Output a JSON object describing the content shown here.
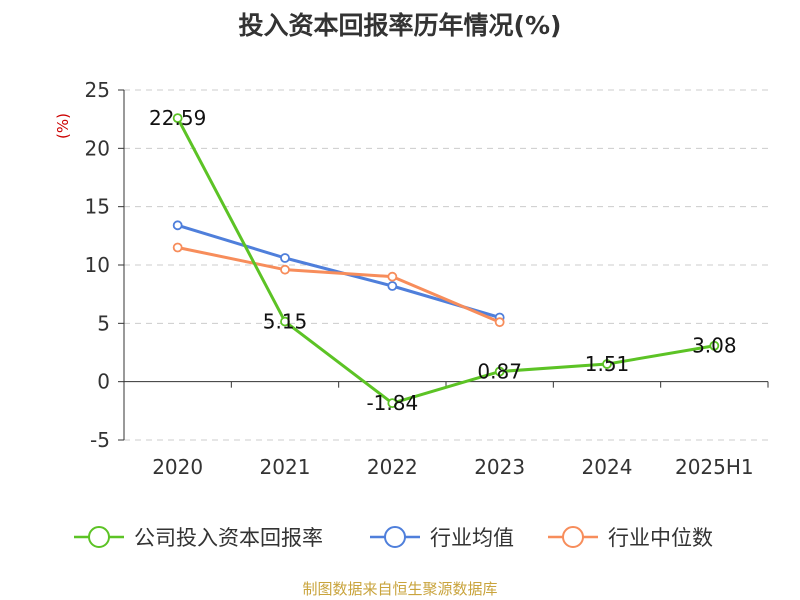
{
  "chart_data": {
    "type": "line",
    "title": "投入资本回报率历年情况(%)",
    "ylabel": "(%)",
    "ylim": [
      -5,
      25
    ],
    "yticks": [
      -5,
      0,
      5,
      10,
      15,
      20,
      25
    ],
    "categories": [
      "2020",
      "2021",
      "2022",
      "2023",
      "2024",
      "2025H1"
    ],
    "grid": true,
    "legend_position": "bottom",
    "series": [
      {
        "name": "公司投入资本回报率",
        "color": "#5cc325",
        "values": [
          22.59,
          5.15,
          -1.84,
          0.87,
          1.51,
          3.08
        ],
        "labels_shown": true
      },
      {
        "name": "行业均值",
        "color": "#4f7fdb",
        "values": [
          13.4,
          10.6,
          8.2,
          5.5,
          null,
          null
        ],
        "labels_shown": false
      },
      {
        "name": "行业中位数",
        "color": "#f78d5b",
        "values": [
          11.5,
          9.6,
          9.0,
          5.1,
          null,
          null
        ],
        "labels_shown": false
      }
    ]
  },
  "source": "制图数据来自恒生聚源数据库"
}
